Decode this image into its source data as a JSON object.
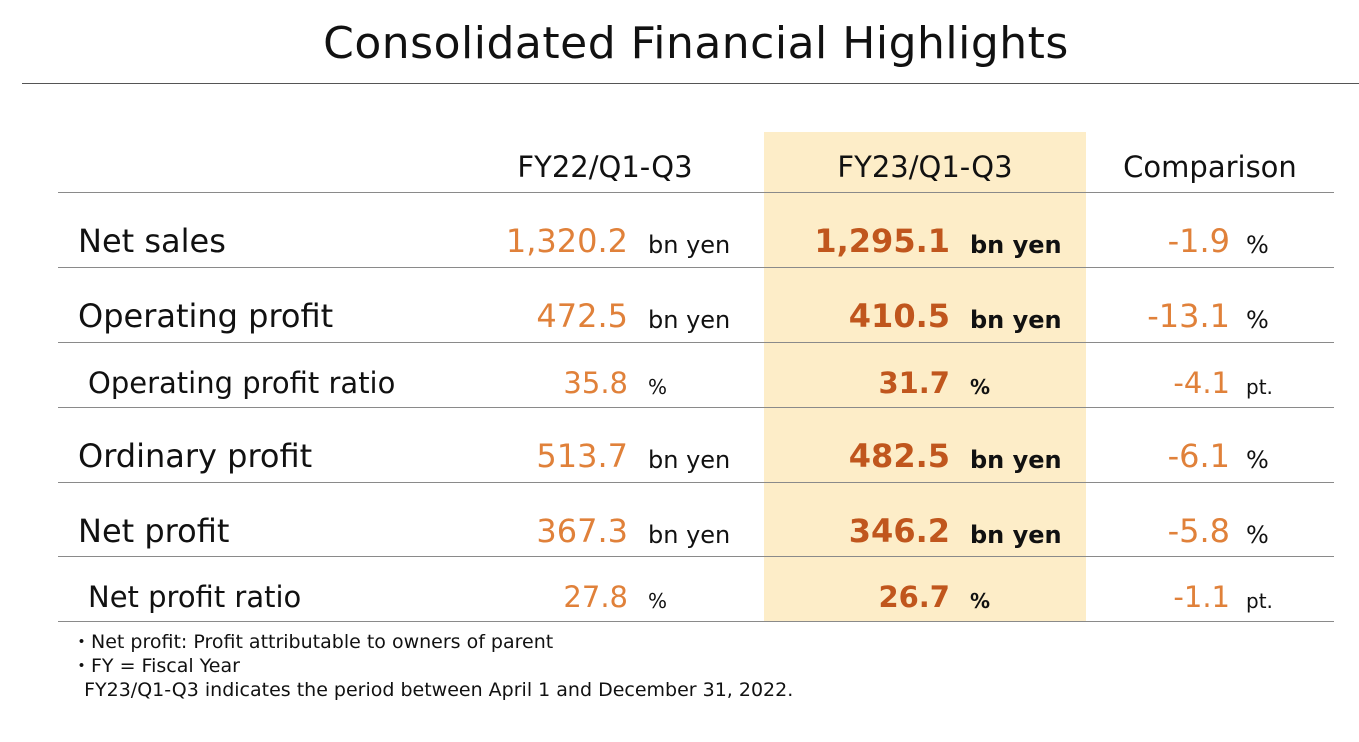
{
  "title": "Consolidated Financial Highlights",
  "columns": {
    "fy22": "FY22/Q1-Q3",
    "fy23": "FY23/Q1-Q3",
    "comparison": "Comparison"
  },
  "rows": [
    {
      "label": "Net sales",
      "fy22_value": "1,320.2",
      "fy22_unit": "bn yen",
      "fy23_value": "1,295.1",
      "fy23_unit": "bn yen",
      "cmp_value": "-1.9",
      "cmp_unit": "%"
    },
    {
      "label": "Operating profit",
      "fy22_value": "472.5",
      "fy22_unit": "bn yen",
      "fy23_value": "410.5",
      "fy23_unit": "bn yen",
      "cmp_value": "-13.1",
      "cmp_unit": "%"
    },
    {
      "label": "Operating profit ratio",
      "fy22_value": "35.8",
      "fy22_unit": "%",
      "fy23_value": "31.7",
      "fy23_unit": "%",
      "cmp_value": "-4.1",
      "cmp_unit": "pt."
    },
    {
      "label": "Ordinary profit",
      "fy22_value": "513.7",
      "fy22_unit": "bn yen",
      "fy23_value": "482.5",
      "fy23_unit": "bn yen",
      "cmp_value": "-6.1",
      "cmp_unit": "%"
    },
    {
      "label": "Net profit",
      "fy22_value": "367.3",
      "fy22_unit": "bn yen",
      "fy23_value": "346.2",
      "fy23_unit": "bn yen",
      "cmp_value": "-5.8",
      "cmp_unit": "%"
    },
    {
      "label": "Net profit ratio",
      "fy22_value": "27.8",
      "fy22_unit": "%",
      "fy23_value": "26.7",
      "fy23_unit": "%",
      "cmp_value": "-1.1",
      "cmp_unit": "pt."
    }
  ],
  "notes": [
    "・Net profit: Profit attributable to owners of parent",
    "・FY = Fiscal Year",
    "  FY23/Q1-Q3 indicates the period between April 1 and December 31, 2022."
  ],
  "colors": {
    "highlight": "#fdedc8",
    "value_orange": "#e0813a",
    "value_dark_orange": "#c0561d"
  }
}
